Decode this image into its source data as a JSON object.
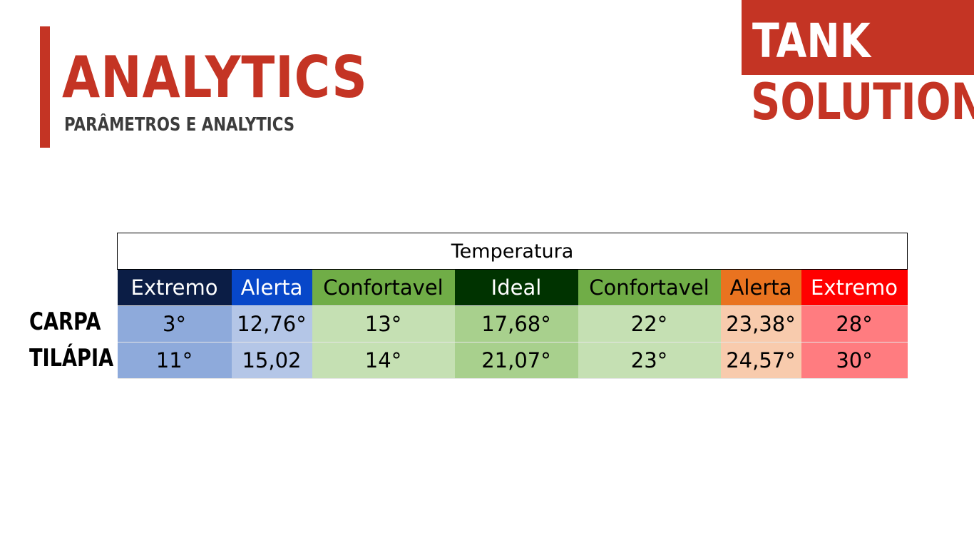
{
  "header": {
    "title": "ANALYTICS",
    "subtitle": "PARÂMETROS E ANALYTICS",
    "accent_color": "#c43424"
  },
  "logo": {
    "line1": "TANK",
    "line2": "SOLUTION"
  },
  "table": {
    "group_header": "Temperatura",
    "columns": [
      {
        "label": "Extremo",
        "header_bg": "#0b1d45",
        "header_color": "#ffffff",
        "cell_bg": "#8eaadb"
      },
      {
        "label": "Alerta",
        "header_bg": "#0747c9",
        "header_color": "#ffffff",
        "cell_bg": "#b4c6e7"
      },
      {
        "label": "Confortavel",
        "header_bg": "#70ad47",
        "header_color": "#000000",
        "cell_bg": "#c5e0b3"
      },
      {
        "label": "Ideal",
        "header_bg": "#003300",
        "header_color": "#ffffff",
        "cell_bg": "#a8d08d"
      },
      {
        "label": "Confortavel",
        "header_bg": "#70ad47",
        "header_color": "#000000",
        "cell_bg": "#c5e0b3"
      },
      {
        "label": "Alerta",
        "header_bg": "#e97320",
        "header_color": "#000000",
        "cell_bg": "#f8cbad"
      },
      {
        "label": "Extremo",
        "header_bg": "#ff0000",
        "header_color": "#ffffff",
        "cell_bg": "#ff7c80"
      }
    ],
    "rows": [
      {
        "label": "CARPA",
        "values": [
          "3°",
          "12,76°",
          "13°",
          "17,68°",
          "22°",
          "23,38°",
          "28°"
        ]
      },
      {
        "label": "TILÁPIA",
        "values": [
          "11°",
          "15,02",
          "14°",
          "21,07°",
          "23°",
          "24,57°",
          "30°"
        ]
      }
    ]
  }
}
